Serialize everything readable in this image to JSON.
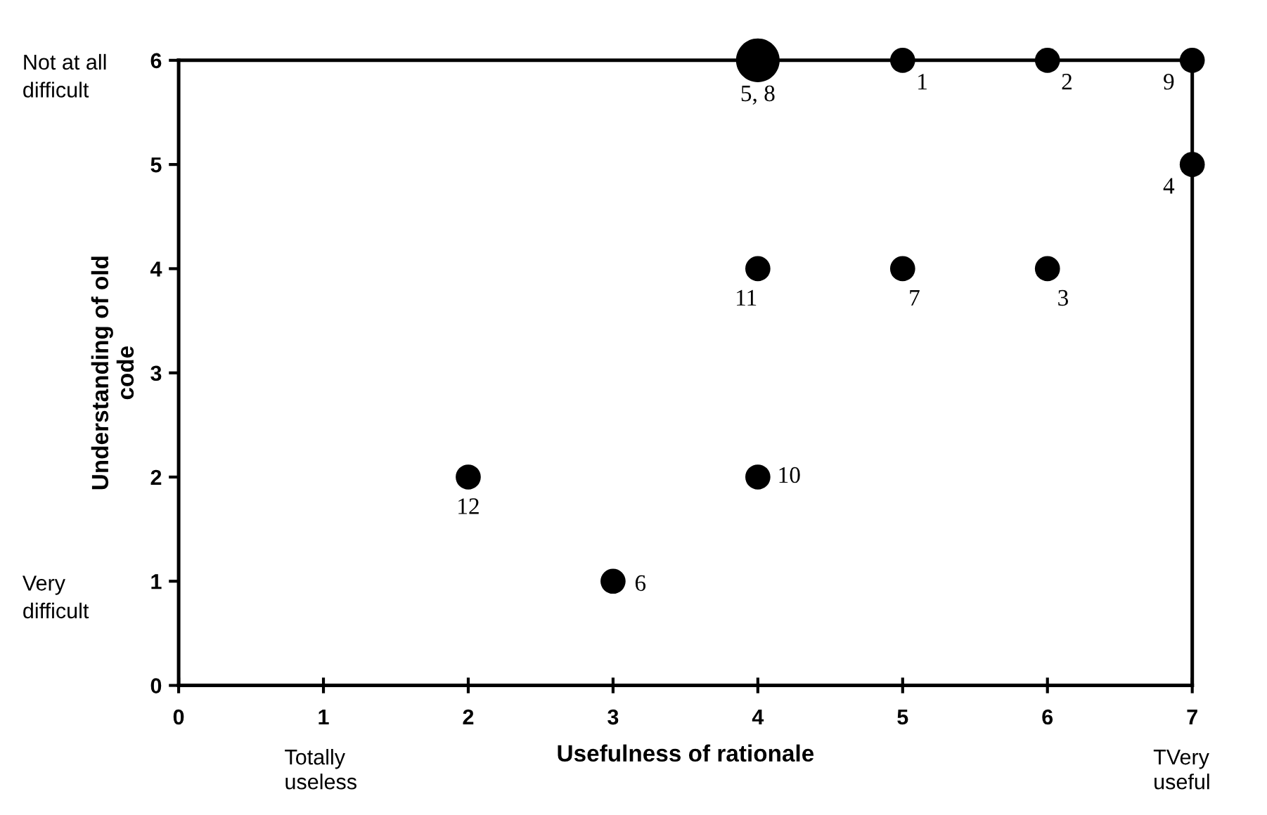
{
  "chart_data": {
    "type": "bubble",
    "xlabel": "Usefulness of rationale",
    "ylabel": "Understanding of old\ncode",
    "x": [
      4,
      5,
      6,
      7,
      7,
      4,
      5,
      6,
      2,
      4,
      3
    ],
    "values": [
      6,
      6,
      6,
      6,
      5,
      4,
      4,
      4,
      2,
      2,
      1
    ],
    "sizes": [
      1,
      0.33,
      0.33,
      0.33,
      0.33,
      0.33,
      0.33,
      0.33,
      0.33,
      0.33,
      0.33
    ],
    "color": "#000000",
    "marker": "circle",
    "grid": false,
    "legend": false,
    "xlim": [
      0,
      7
    ],
    "ylim": [
      0,
      6
    ],
    "xticks": [
      0,
      1,
      2,
      3,
      4,
      5,
      6,
      7
    ],
    "yticks": [
      0,
      1,
      2,
      3,
      4,
      5,
      6
    ],
    "annotations": [
      {
        "text": "5, 8",
        "x": 4,
        "y": 6
      },
      {
        "text": "1",
        "x": 5,
        "y": 6
      },
      {
        "text": "2",
        "x": 6,
        "y": 6
      },
      {
        "text": "9",
        "x": 7,
        "y": 6
      },
      {
        "text": "4",
        "x": 7,
        "y": 5
      },
      {
        "text": "11",
        "x": 4,
        "y": 4
      },
      {
        "text": "7",
        "x": 5,
        "y": 4
      },
      {
        "text": "3",
        "x": 6,
        "y": 4
      },
      {
        "text": "12",
        "x": 2,
        "y": 2
      },
      {
        "text": "10",
        "x": 4,
        "y": 2
      },
      {
        "text": "6",
        "x": 3,
        "y": 1
      },
      "Not at all\ndifficult",
      "Very\ndifficult",
      "Totally\nuseless",
      "TVery\nuseful"
    ]
  }
}
